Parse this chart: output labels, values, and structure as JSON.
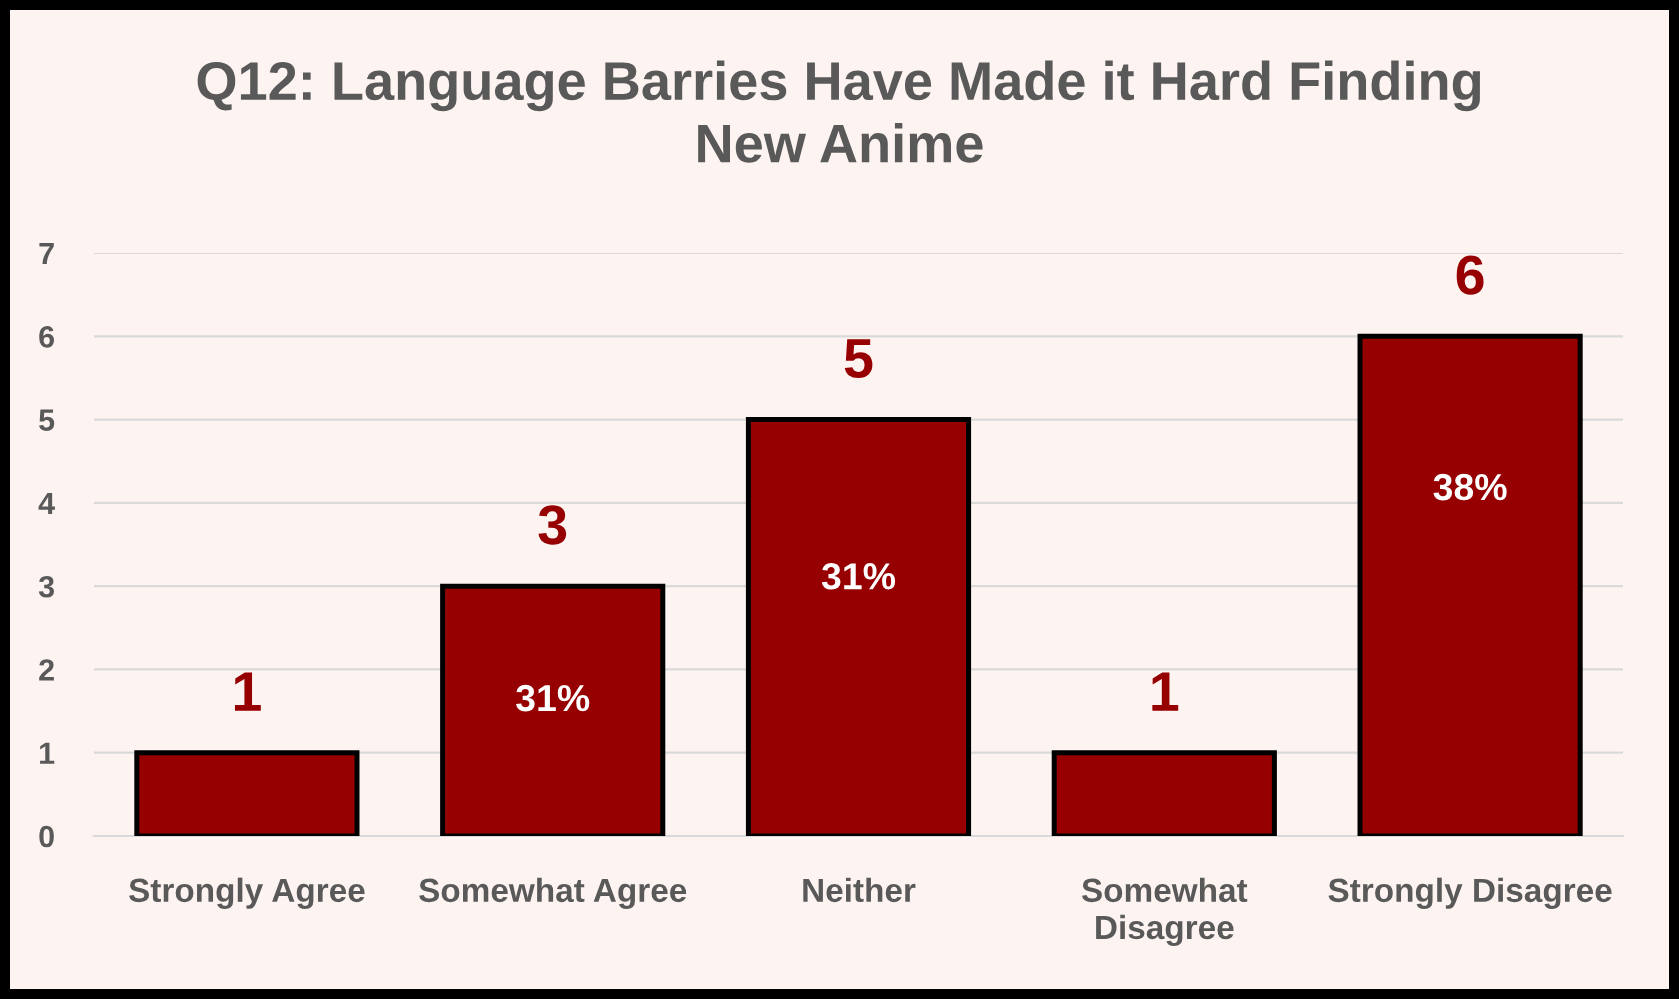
{
  "chart_data": {
    "type": "bar",
    "title": "Q12: Language Barries Have Made it Hard Finding\nNew Anime",
    "categories": [
      "Strongly Agree",
      "Somewhat Agree",
      "Neither",
      "Somewhat\nDisagree",
      "Strongly Disagree"
    ],
    "values": [
      1,
      3,
      5,
      1,
      6
    ],
    "color": "#960000",
    "ylim": [
      0,
      7
    ],
    "yticks": [
      0,
      1,
      2,
      3,
      4,
      5,
      6,
      7
    ],
    "grid": "y",
    "data_labels": true,
    "annotations": [
      "31%",
      "31%",
      "38%"
    ]
  }
}
